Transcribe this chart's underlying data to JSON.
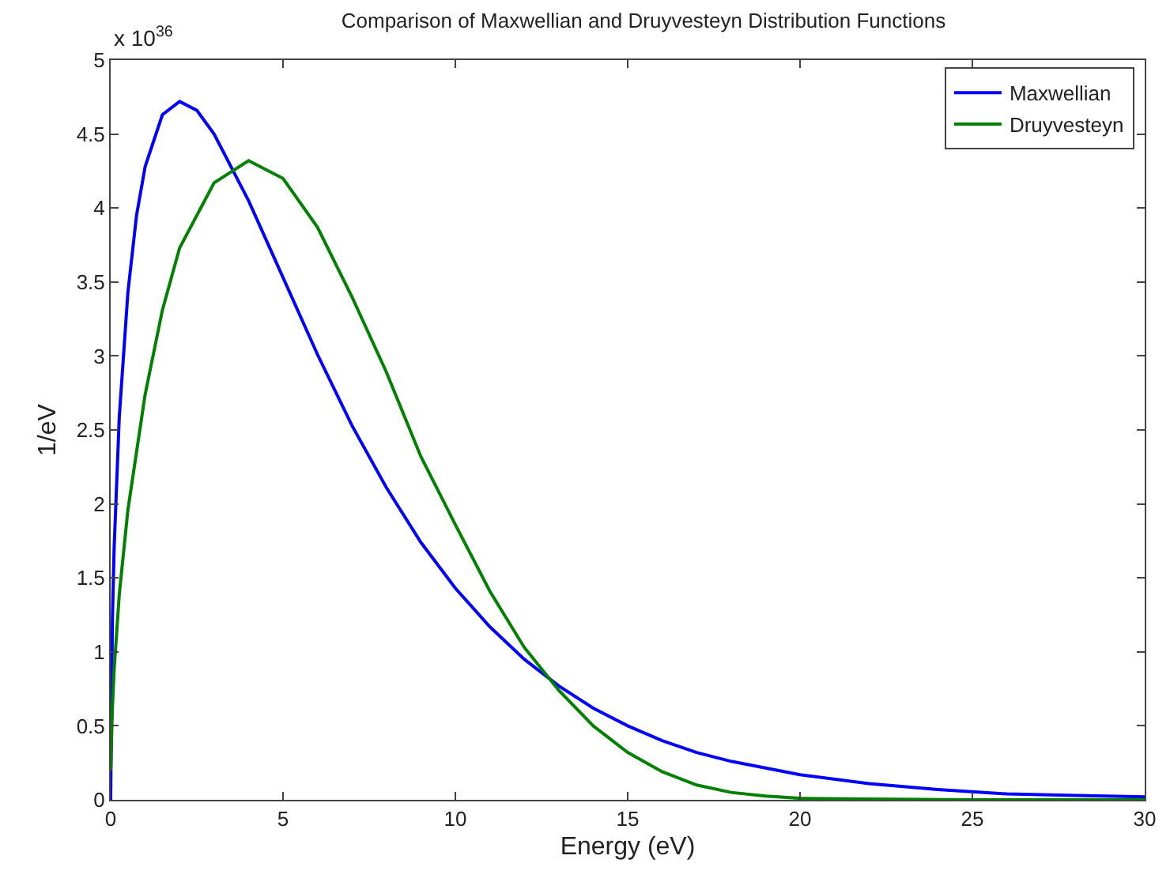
{
  "chart_data": {
    "type": "line",
    "title": "Comparison of Maxwellian and Druyvesteyn Distribution Functions",
    "xlabel": "Energy (eV)",
    "ylabel": "1/eV",
    "annotations": [
      "x 10$^{36}$"
    ],
    "xlim": [
      0,
      30
    ],
    "xticks": [
      0,
      5,
      10,
      15,
      20,
      25,
      30
    ],
    "ylim": [
      0,
      5
    ],
    "yticks": [
      0,
      0.5,
      1,
      1.5,
      2,
      2.5,
      3,
      3.5,
      4,
      4.5,
      5
    ],
    "grid": false,
    "legend": "top right",
    "marker": "none",
    "line_style": "solid",
    "series": [
      {
        "name": "Maxwellian",
        "color": "#0000ff",
        "x": [
          0,
          0.05,
          0.1,
          0.25,
          0.5,
          0.75,
          1,
          1.5,
          2,
          2.5,
          3,
          4,
          5,
          6,
          7,
          8,
          9,
          10,
          11,
          12,
          13,
          14,
          15,
          16,
          17,
          18,
          20,
          22,
          24,
          26,
          28,
          30
        ],
        "values": [
          0,
          1.22,
          1.7,
          2.59,
          3.43,
          3.95,
          4.28,
          4.63,
          4.72,
          4.66,
          4.5,
          4.05,
          3.53,
          3.01,
          2.53,
          2.11,
          1.74,
          1.43,
          1.17,
          0.95,
          0.77,
          0.62,
          0.5,
          0.4,
          0.32,
          0.26,
          0.17,
          0.11,
          0.07,
          0.04,
          0.03,
          0.02
        ]
      },
      {
        "name": "Druyvesteyn",
        "color": "#008000",
        "x": [
          0,
          0.05,
          0.1,
          0.25,
          0.5,
          1,
          1.5,
          2,
          3,
          4,
          5,
          6,
          7,
          8,
          9,
          10,
          11,
          12,
          13,
          14,
          15,
          16,
          17,
          18,
          19,
          20,
          22,
          25,
          30
        ],
        "values": [
          0.2,
          0.62,
          0.88,
          1.39,
          1.96,
          2.74,
          3.31,
          3.73,
          4.17,
          4.32,
          4.2,
          3.87,
          3.4,
          2.89,
          2.32,
          1.86,
          1.41,
          1.03,
          0.74,
          0.5,
          0.32,
          0.19,
          0.1,
          0.05,
          0.025,
          0.01,
          0.005,
          0,
          0
        ]
      }
    ]
  }
}
